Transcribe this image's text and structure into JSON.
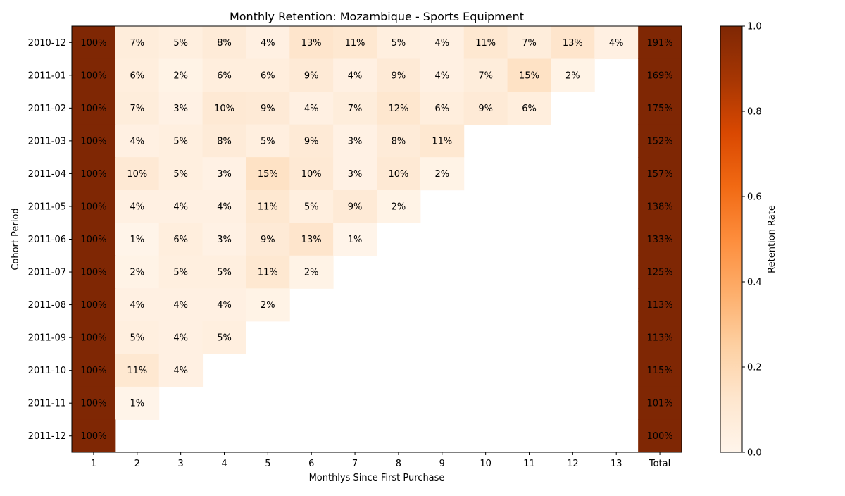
{
  "chart_data": {
    "type": "heatmap",
    "title": "Monthly Retention: Mozambique - Sports Equipment",
    "xlabel": "Monthlys Since First Purchase",
    "ylabel": "Cohort Period",
    "x_categories": [
      "1",
      "2",
      "3",
      "4",
      "5",
      "6",
      "7",
      "8",
      "9",
      "10",
      "11",
      "12",
      "13",
      "Total"
    ],
    "y_categories": [
      "2010-12",
      "2011-01",
      "2011-02",
      "2011-03",
      "2011-04",
      "2011-05",
      "2011-06",
      "2011-07",
      "2011-08",
      "2011-09",
      "2011-10",
      "2011-11",
      "2011-12"
    ],
    "values": [
      [
        1.0,
        0.07,
        0.05,
        0.08,
        0.04,
        0.13,
        0.11,
        0.05,
        0.04,
        0.11,
        0.07,
        0.13,
        0.04
      ],
      [
        1.0,
        0.06,
        0.02,
        0.06,
        0.06,
        0.09,
        0.04,
        0.09,
        0.04,
        0.07,
        0.15,
        0.02
      ],
      [
        1.0,
        0.07,
        0.03,
        0.1,
        0.09,
        0.04,
        0.07,
        0.12,
        0.06,
        0.09,
        0.06
      ],
      [
        1.0,
        0.04,
        0.05,
        0.08,
        0.05,
        0.09,
        0.03,
        0.08,
        0.11
      ],
      [
        1.0,
        0.1,
        0.05,
        0.03,
        0.15,
        0.1,
        0.03,
        0.1,
        0.02
      ],
      [
        1.0,
        0.04,
        0.04,
        0.04,
        0.11,
        0.05,
        0.09,
        0.02
      ],
      [
        1.0,
        0.01,
        0.06,
        0.03,
        0.09,
        0.13,
        0.01
      ],
      [
        1.0,
        0.02,
        0.05,
        0.05,
        0.11,
        0.02
      ],
      [
        1.0,
        0.04,
        0.04,
        0.04,
        0.02
      ],
      [
        1.0,
        0.05,
        0.04,
        0.05
      ],
      [
        1.0,
        0.11,
        0.04
      ],
      [
        1.0,
        0.01
      ],
      [
        1.0
      ]
    ],
    "labels": [
      [
        "100%",
        "7%",
        "5%",
        "8%",
        "4%",
        "13%",
        "11%",
        "5%",
        "4%",
        "11%",
        "7%",
        "13%",
        "4%"
      ],
      [
        "100%",
        "6%",
        "2%",
        "6%",
        "6%",
        "9%",
        "4%",
        "9%",
        "4%",
        "7%",
        "15%",
        "2%"
      ],
      [
        "100%",
        "7%",
        "3%",
        "10%",
        "9%",
        "4%",
        "7%",
        "12%",
        "6%",
        "9%",
        "6%"
      ],
      [
        "100%",
        "4%",
        "5%",
        "8%",
        "5%",
        "9%",
        "3%",
        "8%",
        "11%"
      ],
      [
        "100%",
        "10%",
        "5%",
        "3%",
        "15%",
        "10%",
        "3%",
        "10%",
        "2%"
      ],
      [
        "100%",
        "4%",
        "4%",
        "4%",
        "11%",
        "5%",
        "9%",
        "2%"
      ],
      [
        "100%",
        "1%",
        "6%",
        "3%",
        "9%",
        "13%",
        "1%"
      ],
      [
        "100%",
        "2%",
        "5%",
        "5%",
        "11%",
        "2%"
      ],
      [
        "100%",
        "4%",
        "4%",
        "4%",
        "2%"
      ],
      [
        "100%",
        "5%",
        "4%",
        "5%"
      ],
      [
        "100%",
        "11%",
        "4%"
      ],
      [
        "100%",
        "1%"
      ],
      [
        "100%"
      ]
    ],
    "totals": [
      "191%",
      "169%",
      "175%",
      "152%",
      "157%",
      "138%",
      "133%",
      "125%",
      "113%",
      "113%",
      "115%",
      "101%",
      "100%"
    ],
    "colorbar": {
      "label": "Retention Rate",
      "range": [
        0,
        1
      ],
      "ticks": [
        "0.0",
        "0.2",
        "0.4",
        "0.6",
        "0.8",
        "1.0"
      ],
      "colormap": "Oranges",
      "stops": [
        "#fff5eb",
        "#fee6ce",
        "#fdd0a2",
        "#fdae6b",
        "#fd8d3c",
        "#f16913",
        "#d94801",
        "#a63603",
        "#7f2704"
      ]
    },
    "grid": false
  }
}
